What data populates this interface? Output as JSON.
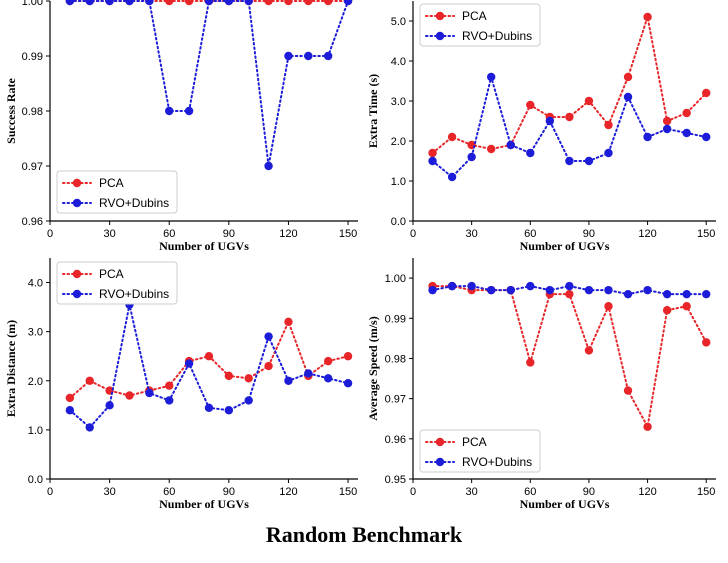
{
  "figure_title": "Random Benchmark",
  "colors": {
    "pca": "#e8262a",
    "rvo": "#1c1cd9"
  },
  "chart_data": [
    {
      "type": "line",
      "id": "success",
      "xlabel": "Number of UGVs",
      "ylabel": "Success Rate",
      "xlim": [
        0,
        155
      ],
      "ylim": [
        0.96,
        1.0
      ],
      "xticks": [
        0,
        30,
        60,
        90,
        120,
        150
      ],
      "yticks": [
        0.96,
        0.97,
        0.98,
        0.99,
        1.0
      ],
      "ytick_labels": [
        "0.96",
        "0.97",
        "0.98",
        "0.99",
        "1.00"
      ],
      "legend": "bottom-left",
      "x": [
        10,
        20,
        30,
        40,
        50,
        60,
        70,
        80,
        90,
        100,
        110,
        120,
        130,
        140,
        150
      ],
      "series": [
        {
          "name": "PCA",
          "color": "#e8262a",
          "values": [
            1.0,
            1.0,
            1.0,
            1.0,
            1.0,
            1.0,
            1.0,
            1.0,
            1.0,
            1.0,
            1.0,
            1.0,
            1.0,
            1.0,
            1.0
          ]
        },
        {
          "name": "RVO+Dubins",
          "color": "#1c1cd9",
          "values": [
            1.0,
            1.0,
            1.0,
            1.0,
            1.0,
            0.98,
            0.98,
            1.0,
            1.0,
            1.0,
            0.97,
            0.99,
            0.99,
            0.99,
            1.0
          ]
        }
      ]
    },
    {
      "type": "line",
      "id": "extra_time",
      "xlabel": "Number of UGVs",
      "ylabel": "Extra Time (s)",
      "xlim": [
        0,
        155
      ],
      "ylim": [
        0,
        5.5
      ],
      "xticks": [
        0,
        30,
        60,
        90,
        120,
        150
      ],
      "yticks": [
        0,
        1,
        2,
        3,
        4,
        5
      ],
      "ytick_labels": [
        "0.0",
        "1.0",
        "2.0",
        "3.0",
        "4.0",
        "5.0"
      ],
      "legend": "top-left",
      "x": [
        10,
        20,
        30,
        40,
        50,
        60,
        70,
        80,
        90,
        100,
        110,
        120,
        130,
        140,
        150
      ],
      "series": [
        {
          "name": "PCA",
          "color": "#e8262a",
          "values": [
            1.7,
            2.1,
            1.9,
            1.8,
            1.9,
            2.9,
            2.6,
            2.6,
            3.0,
            2.4,
            3.6,
            5.1,
            2.5,
            2.7,
            3.2
          ]
        },
        {
          "name": "RVO+Dubins",
          "color": "#1c1cd9",
          "values": [
            1.5,
            1.1,
            1.6,
            3.6,
            1.9,
            1.7,
            2.5,
            1.5,
            1.5,
            1.7,
            3.1,
            2.1,
            2.3,
            2.2,
            2.1
          ]
        }
      ]
    },
    {
      "type": "line",
      "id": "extra_distance",
      "xlabel": "Number of UGVs",
      "ylabel": "Extra Distance (m)",
      "xlim": [
        0,
        155
      ],
      "ylim": [
        0,
        4.5
      ],
      "xticks": [
        0,
        30,
        60,
        90,
        120,
        150
      ],
      "yticks": [
        0,
        1,
        2,
        3,
        4
      ],
      "ytick_labels": [
        "0.0",
        "1.0",
        "2.0",
        "3.0",
        "4.0"
      ],
      "legend": "top-left",
      "x": [
        10,
        20,
        30,
        40,
        50,
        60,
        70,
        80,
        90,
        100,
        110,
        120,
        130,
        140,
        150
      ],
      "series": [
        {
          "name": "PCA",
          "color": "#e8262a",
          "values": [
            1.65,
            2.0,
            1.8,
            1.7,
            1.8,
            1.9,
            2.4,
            2.5,
            2.1,
            2.05,
            2.3,
            3.2,
            2.1,
            2.4,
            2.5
          ]
        },
        {
          "name": "RVO+Dubins",
          "color": "#1c1cd9",
          "values": [
            1.4,
            1.05,
            1.5,
            3.55,
            1.75,
            1.6,
            2.35,
            1.45,
            1.4,
            1.6,
            2.9,
            2.0,
            2.15,
            2.05,
            1.95
          ]
        }
      ]
    },
    {
      "type": "line",
      "id": "avg_speed",
      "xlabel": "Number of UGVs",
      "ylabel": "Average Speed (m/s)",
      "xlim": [
        0,
        155
      ],
      "ylim": [
        0.95,
        1.005
      ],
      "xticks": [
        0,
        30,
        60,
        90,
        120,
        150
      ],
      "yticks": [
        0.95,
        0.96,
        0.97,
        0.98,
        0.99,
        1.0
      ],
      "ytick_labels": [
        "0.95",
        "0.96",
        "0.97",
        "0.98",
        "0.99",
        "1.00"
      ],
      "legend": "bottom-left",
      "x": [
        10,
        20,
        30,
        40,
        50,
        60,
        70,
        80,
        90,
        100,
        110,
        120,
        130,
        140,
        150
      ],
      "series": [
        {
          "name": "PCA",
          "color": "#e8262a",
          "values": [
            0.998,
            0.998,
            0.997,
            0.997,
            0.997,
            0.979,
            0.996,
            0.996,
            0.982,
            0.993,
            0.972,
            0.963,
            0.992,
            0.993,
            0.984
          ]
        },
        {
          "name": "RVO+Dubins",
          "color": "#1c1cd9",
          "values": [
            0.997,
            0.998,
            0.998,
            0.997,
            0.997,
            0.998,
            0.997,
            0.998,
            0.997,
            0.997,
            0.996,
            0.997,
            0.996,
            0.996,
            0.996
          ]
        }
      ]
    }
  ]
}
